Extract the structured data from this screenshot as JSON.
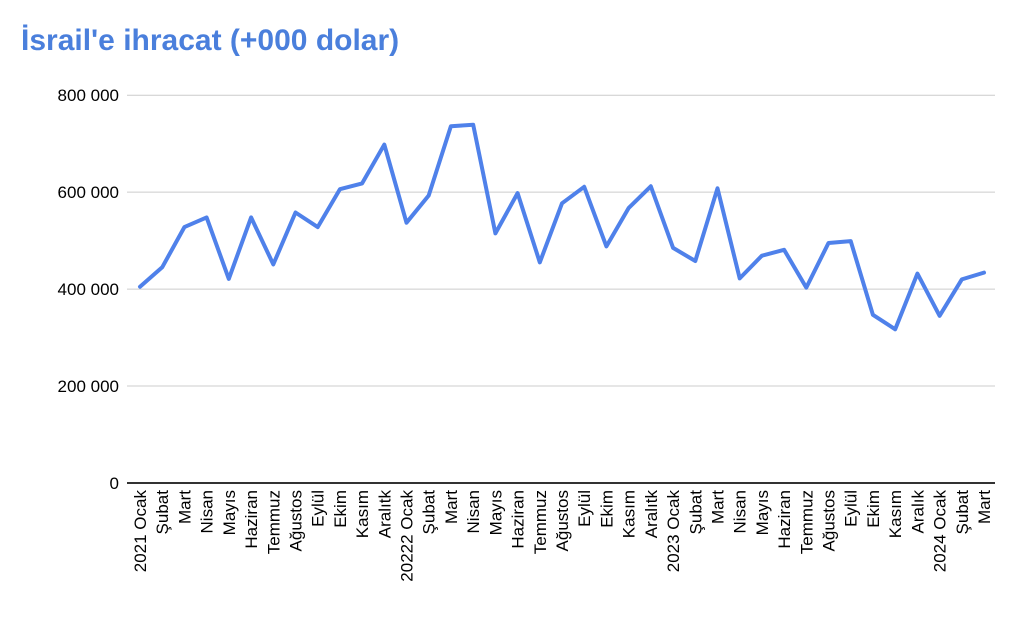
{
  "title": "İsrail'e ihracat (+000 dolar)",
  "colors": {
    "title": "#4a7fdc",
    "line": "#4f81ea",
    "grid": "#cccccc",
    "axis": "#333333",
    "tick_text": "#000000",
    "background": "#ffffff"
  },
  "chart_data": {
    "type": "line",
    "title": "İsrail'e ihracat (+000 dolar)",
    "xlabel": "",
    "ylabel": "",
    "ylim": [
      0,
      800000
    ],
    "grid": true,
    "legend_position": "none",
    "yticks": [
      0,
      200000,
      400000,
      600000,
      800000
    ],
    "ytick_labels": [
      "0",
      "200 000",
      "400 000",
      "600 000",
      "800 000"
    ],
    "categories": [
      "2021 Ocak",
      "Şubat",
      "Mart",
      "Nisan",
      "Mayıs",
      "Haziran",
      "Temmuz",
      "Ağustos",
      "Eylül",
      "Ekim",
      "Kasım",
      "Aralıtk",
      "20222 Ocak",
      "Şubat",
      "Mart",
      "Nisan",
      "Mayıs",
      "Haziran",
      "Temmuz",
      "Ağustos",
      "Eylül",
      "Ekim",
      "Kasım",
      "Aralıtk",
      "2023 Ocak",
      "Şubat",
      "Mart",
      "Nisan",
      "Mayıs",
      "Haziran",
      "Temmuz",
      "Ağustos",
      "Eylül",
      "Ekim",
      "Kasım",
      "Aralık",
      "2024 Ocak",
      "Şubat",
      "Mart"
    ],
    "series": [
      {
        "name": "İsrail'e ihracat (+000 dolar)",
        "values": [
          405000,
          445000,
          528000,
          548000,
          421000,
          548000,
          451000,
          558000,
          528000,
          606000,
          618000,
          698000,
          537000,
          593000,
          736000,
          739000,
          515000,
          598000,
          455000,
          577000,
          611000,
          488000,
          567000,
          612000,
          485000,
          458000,
          608000,
          422000,
          469000,
          481000,
          403000,
          495000,
          499000,
          347000,
          317000,
          432000,
          345000,
          420000,
          434000
        ]
      }
    ]
  }
}
